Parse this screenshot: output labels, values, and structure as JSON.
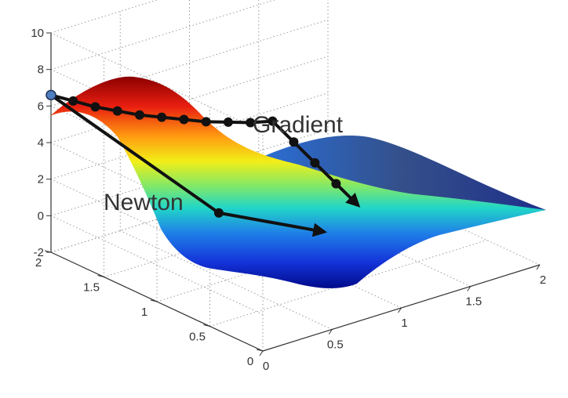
{
  "chart_data": {
    "type": "surface",
    "title": "",
    "xlabel": "",
    "ylabel": "",
    "zlabel": "",
    "xlim": [
      0,
      2
    ],
    "ylim": [
      0,
      2
    ],
    "zlim": [
      -2,
      10
    ],
    "x_ticks": [
      "0",
      "0.5",
      "1",
      "1.5",
      "2"
    ],
    "y_ticks": [
      "0",
      "0.5",
      "1",
      "1.5",
      "2"
    ],
    "z_ticks": [
      "-2",
      "0",
      "2",
      "4",
      "6",
      "8",
      "10"
    ],
    "grid": true,
    "colormap": "jet",
    "annotations": [
      "Gradient",
      "Newton"
    ],
    "series": [
      {
        "name": "Gradient",
        "color": "#111111",
        "points": [
          {
            "x": 0.0,
            "y": 2.0,
            "z": 6.6
          },
          {
            "x": 0.16,
            "y": 2.0,
            "z": 5.9
          },
          {
            "x": 0.32,
            "y": 2.0,
            "z": 5.2
          },
          {
            "x": 0.48,
            "y": 2.0,
            "z": 4.6
          },
          {
            "x": 0.64,
            "y": 2.0,
            "z": 4.0
          },
          {
            "x": 0.8,
            "y": 2.0,
            "z": 3.5
          },
          {
            "x": 0.96,
            "y": 2.0,
            "z": 3.0
          },
          {
            "x": 1.12,
            "y": 2.0,
            "z": 2.5
          },
          {
            "x": 1.28,
            "y": 2.0,
            "z": 2.1
          },
          {
            "x": 1.44,
            "y": 2.0,
            "z": 1.7
          },
          {
            "x": 1.6,
            "y": 2.0,
            "z": 1.4
          },
          {
            "x": 1.6,
            "y": 1.8,
            "z": 0.8
          },
          {
            "x": 1.6,
            "y": 1.6,
            "z": 0.2
          },
          {
            "x": 1.6,
            "y": 1.4,
            "z": -0.4
          },
          {
            "x": 1.6,
            "y": 1.2,
            "z": -1.0
          }
        ]
      },
      {
        "name": "Newton",
        "color": "#111111",
        "points": [
          {
            "x": 0.0,
            "y": 2.0,
            "z": 6.6
          },
          {
            "x": 0.6,
            "y": 1.2,
            "z": 0.9
          },
          {
            "x": 1.2,
            "y": 1.0,
            "z": -1.0
          }
        ]
      }
    ]
  }
}
